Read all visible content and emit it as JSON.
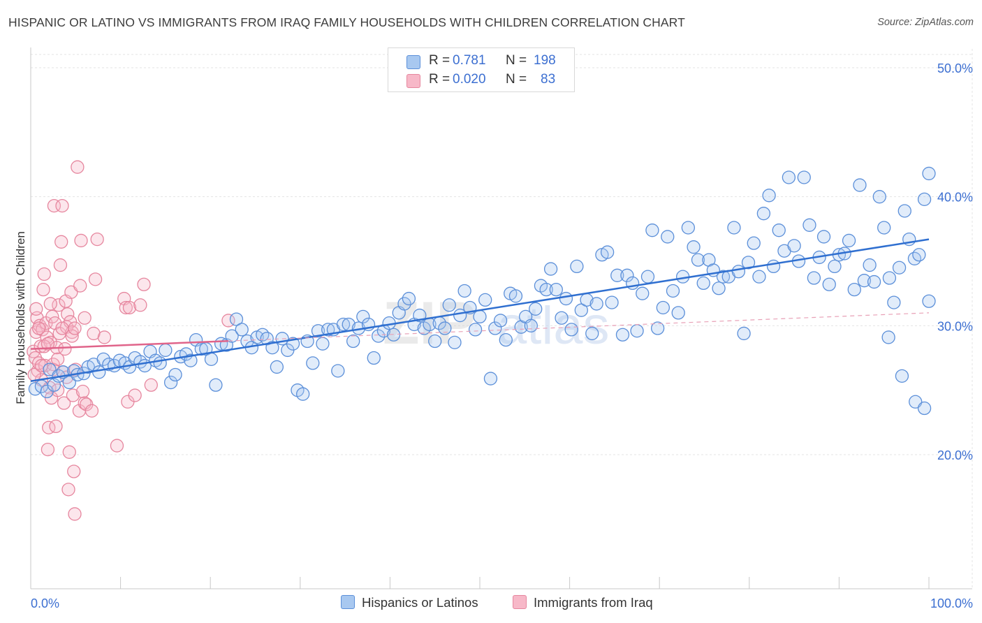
{
  "title": "HISPANIC OR LATINO VS IMMIGRANTS FROM IRAQ FAMILY HOUSEHOLDS WITH CHILDREN CORRELATION CHART",
  "source": "Source: ZipAtlas.com",
  "watermark": {
    "zip": "ZIP",
    "atlas": "atlas"
  },
  "legend_top": {
    "rows": [
      {
        "r_label": "R =",
        "r_value": "0.781",
        "n_label": "N =",
        "n_value": "198",
        "color": "#a8c8f0",
        "border": "#5b8fd9"
      },
      {
        "r_label": "R =",
        "r_value": "0.020",
        "n_label": "N =",
        "n_value": "83",
        "color": "#f7b8c8",
        "border": "#e6869e"
      }
    ]
  },
  "legend_bottom": [
    {
      "label": "Hispanics or Latinos",
      "color": "#a8c8f0",
      "border": "#5b8fd9"
    },
    {
      "label": "Immigrants from Iraq",
      "color": "#f7b8c8",
      "border": "#e6869e"
    }
  ],
  "chart_data": {
    "type": "scatter",
    "title": "HISPANIC OR LATINO VS IMMIGRANTS FROM IRAQ FAMILY HOUSEHOLDS WITH CHILDREN CORRELATION CHART",
    "xlabel": "",
    "ylabel": "Family Households with Children",
    "xlim": [
      0,
      100
    ],
    "ylim": [
      10,
      52
    ],
    "y_ticks": [
      20,
      30,
      40,
      50
    ],
    "y_tick_labels": [
      "20.0%",
      "30.0%",
      "40.0%",
      "50.0%"
    ],
    "x_tick_labels": [
      "0.0%",
      "100.0%"
    ],
    "grid": true,
    "series": [
      {
        "name": "Hispanics or Latinos",
        "color": "#5b8fd9",
        "fill": "#a8c8f0",
        "trend": {
          "x": [
            0,
            100
          ],
          "y": [
            25.7,
            36.7
          ],
          "style": "solid"
        },
        "points": [
          [
            0.5,
            25.1
          ],
          [
            1.2,
            25.3
          ],
          [
            1.8,
            24.9
          ],
          [
            2.1,
            26.6
          ],
          [
            2.6,
            25.4
          ],
          [
            3.1,
            26.1
          ],
          [
            3.6,
            26.4
          ],
          [
            4.3,
            25.6
          ],
          [
            4.8,
            26.5
          ],
          [
            5.2,
            26.2
          ],
          [
            5.9,
            26.3
          ],
          [
            6.4,
            26.8
          ],
          [
            7.0,
            27.0
          ],
          [
            7.6,
            26.4
          ],
          [
            8.1,
            27.4
          ],
          [
            8.7,
            27.0
          ],
          [
            9.3,
            26.9
          ],
          [
            9.9,
            27.3
          ],
          [
            10.5,
            27.1
          ],
          [
            11.0,
            26.8
          ],
          [
            11.6,
            27.5
          ],
          [
            12.2,
            27.2
          ],
          [
            12.7,
            26.9
          ],
          [
            13.3,
            28.0
          ],
          [
            13.9,
            27.3
          ],
          [
            14.4,
            27.1
          ],
          [
            15.0,
            28.1
          ],
          [
            15.6,
            25.6
          ],
          [
            16.1,
            26.2
          ],
          [
            16.7,
            27.6
          ],
          [
            17.3,
            27.8
          ],
          [
            17.8,
            27.3
          ],
          [
            18.4,
            28.9
          ],
          [
            19.0,
            28.2
          ],
          [
            19.5,
            28.2
          ],
          [
            20.1,
            27.4
          ],
          [
            20.6,
            25.4
          ],
          [
            21.2,
            28.6
          ],
          [
            21.8,
            28.5
          ],
          [
            22.4,
            29.2
          ],
          [
            22.9,
            30.5
          ],
          [
            23.5,
            29.7
          ],
          [
            24.1,
            28.8
          ],
          [
            24.6,
            28.3
          ],
          [
            25.2,
            29.1
          ],
          [
            25.8,
            29.3
          ],
          [
            26.3,
            29.0
          ],
          [
            26.9,
            28.3
          ],
          [
            27.4,
            26.8
          ],
          [
            28.0,
            29.0
          ],
          [
            28.6,
            28.1
          ],
          [
            29.2,
            28.6
          ],
          [
            29.7,
            25.0
          ],
          [
            30.3,
            24.7
          ],
          [
            30.8,
            28.8
          ],
          [
            31.4,
            27.1
          ],
          [
            32.0,
            29.6
          ],
          [
            32.5,
            28.6
          ],
          [
            33.1,
            29.7
          ],
          [
            33.7,
            29.7
          ],
          [
            34.2,
            26.5
          ],
          [
            34.8,
            30.1
          ],
          [
            35.4,
            30.1
          ],
          [
            35.9,
            28.8
          ],
          [
            36.5,
            29.8
          ],
          [
            37.0,
            30.7
          ],
          [
            37.6,
            30.1
          ],
          [
            38.2,
            27.5
          ],
          [
            38.7,
            29.2
          ],
          [
            39.3,
            29.6
          ],
          [
            39.9,
            30.2
          ],
          [
            40.4,
            29.3
          ],
          [
            41.0,
            31.0
          ],
          [
            41.6,
            31.7
          ],
          [
            42.1,
            32.1
          ],
          [
            42.7,
            30.1
          ],
          [
            43.3,
            30.8
          ],
          [
            43.8,
            29.8
          ],
          [
            44.4,
            30.1
          ],
          [
            45.0,
            28.8
          ],
          [
            45.5,
            30.2
          ],
          [
            46.1,
            29.8
          ],
          [
            46.6,
            31.6
          ],
          [
            47.2,
            28.7
          ],
          [
            47.8,
            30.8
          ],
          [
            48.3,
            32.7
          ],
          [
            48.9,
            31.4
          ],
          [
            49.5,
            29.7
          ],
          [
            50.0,
            30.7
          ],
          [
            50.6,
            32.0
          ],
          [
            51.2,
            25.9
          ],
          [
            51.7,
            29.8
          ],
          [
            52.3,
            30.4
          ],
          [
            52.9,
            28.9
          ],
          [
            53.4,
            32.5
          ],
          [
            54.0,
            32.3
          ],
          [
            54.6,
            29.9
          ],
          [
            55.1,
            30.7
          ],
          [
            55.7,
            30.0
          ],
          [
            56.2,
            31.3
          ],
          [
            56.8,
            33.1
          ],
          [
            57.4,
            32.8
          ],
          [
            57.9,
            34.4
          ],
          [
            58.5,
            32.8
          ],
          [
            59.1,
            30.6
          ],
          [
            59.6,
            32.1
          ],
          [
            60.2,
            29.7
          ],
          [
            60.8,
            34.6
          ],
          [
            61.3,
            31.2
          ],
          [
            61.9,
            32.0
          ],
          [
            62.5,
            29.4
          ],
          [
            63.0,
            31.7
          ],
          [
            63.6,
            35.5
          ],
          [
            64.2,
            35.7
          ],
          [
            64.7,
            31.8
          ],
          [
            65.3,
            33.9
          ],
          [
            65.9,
            29.3
          ],
          [
            66.4,
            33.9
          ],
          [
            67.0,
            33.3
          ],
          [
            67.5,
            29.6
          ],
          [
            68.1,
            32.5
          ],
          [
            68.7,
            33.8
          ],
          [
            69.2,
            37.4
          ],
          [
            69.8,
            29.8
          ],
          [
            70.4,
            31.4
          ],
          [
            70.9,
            36.9
          ],
          [
            71.5,
            32.7
          ],
          [
            72.1,
            31.0
          ],
          [
            72.6,
            33.8
          ],
          [
            73.2,
            37.6
          ],
          [
            73.8,
            36.1
          ],
          [
            74.3,
            35.1
          ],
          [
            74.9,
            33.3
          ],
          [
            75.5,
            35.1
          ],
          [
            76.0,
            34.3
          ],
          [
            76.6,
            32.9
          ],
          [
            77.1,
            33.8
          ],
          [
            77.7,
            33.8
          ],
          [
            78.3,
            37.6
          ],
          [
            78.8,
            34.2
          ],
          [
            79.4,
            29.4
          ],
          [
            79.9,
            34.9
          ],
          [
            80.5,
            36.4
          ],
          [
            81.1,
            33.8
          ],
          [
            81.6,
            38.7
          ],
          [
            82.2,
            40.1
          ],
          [
            82.7,
            34.6
          ],
          [
            83.3,
            37.4
          ],
          [
            83.9,
            35.8
          ],
          [
            84.4,
            41.5
          ],
          [
            85.0,
            36.2
          ],
          [
            85.5,
            35.0
          ],
          [
            86.1,
            41.5
          ],
          [
            86.7,
            37.8
          ],
          [
            87.2,
            33.7
          ],
          [
            87.8,
            35.3
          ],
          [
            88.3,
            36.9
          ],
          [
            88.9,
            33.2
          ],
          [
            89.5,
            34.6
          ],
          [
            90.0,
            35.5
          ],
          [
            90.6,
            35.6
          ],
          [
            91.1,
            36.6
          ],
          [
            91.7,
            32.8
          ],
          [
            92.3,
            40.9
          ],
          [
            92.8,
            33.5
          ],
          [
            93.4,
            34.7
          ],
          [
            93.9,
            33.4
          ],
          [
            94.5,
            40.0
          ],
          [
            95.0,
            37.6
          ],
          [
            95.6,
            33.7
          ],
          [
            96.1,
            31.8
          ],
          [
            96.7,
            34.5
          ],
          [
            97.3,
            38.9
          ],
          [
            97.8,
            36.7
          ],
          [
            98.4,
            35.2
          ],
          [
            98.9,
            35.5
          ],
          [
            99.5,
            39.8
          ],
          [
            100.0,
            41.8
          ],
          [
            95.5,
            29.1
          ],
          [
            97.0,
            26.1
          ],
          [
            98.5,
            24.1
          ],
          [
            99.5,
            23.6
          ],
          [
            100.0,
            31.9
          ]
        ]
      },
      {
        "name": "Immigrants from Iraq",
        "color": "#e6869e",
        "fill": "#f7b8c8",
        "trend": {
          "x": [
            0,
            100
          ],
          "y": [
            28.2,
            31.0
          ],
          "style": "solid-to-dashed",
          "solid_until_x": 22
        },
        "points": [
          [
            0.3,
            28.0
          ],
          [
            0.5,
            27.5
          ],
          [
            0.6,
            29.5
          ],
          [
            0.7,
            30.6
          ],
          [
            0.8,
            26.5
          ],
          [
            0.9,
            27.1
          ],
          [
            1.0,
            30.0
          ],
          [
            1.1,
            28.4
          ],
          [
            1.2,
            25.8
          ],
          [
            1.3,
            29.7
          ],
          [
            1.4,
            32.8
          ],
          [
            1.5,
            34.0
          ],
          [
            1.6,
            26.9
          ],
          [
            1.7,
            30.2
          ],
          [
            1.8,
            29.1
          ],
          [
            1.9,
            20.4
          ],
          [
            2.0,
            22.1
          ],
          [
            2.1,
            25.2
          ],
          [
            2.2,
            28.7
          ],
          [
            2.3,
            24.4
          ],
          [
            2.4,
            30.7
          ],
          [
            2.5,
            27.0
          ],
          [
            2.6,
            39.3
          ],
          [
            2.7,
            30.2
          ],
          [
            2.8,
            22.2
          ],
          [
            2.9,
            28.3
          ],
          [
            3.0,
            25.0
          ],
          [
            3.1,
            31.6
          ],
          [
            3.2,
            29.4
          ],
          [
            3.3,
            34.7
          ],
          [
            3.4,
            36.5
          ],
          [
            3.5,
            39.3
          ],
          [
            3.6,
            26.4
          ],
          [
            3.7,
            24.0
          ],
          [
            3.8,
            28.2
          ],
          [
            3.9,
            31.9
          ],
          [
            4.0,
            29.9
          ],
          [
            4.1,
            30.9
          ],
          [
            4.2,
            17.3
          ],
          [
            4.3,
            20.2
          ],
          [
            4.4,
            30.3
          ],
          [
            4.5,
            32.6
          ],
          [
            4.6,
            29.5
          ],
          [
            4.7,
            24.6
          ],
          [
            4.8,
            18.7
          ],
          [
            4.9,
            15.4
          ],
          [
            5.0,
            26.6
          ],
          [
            5.2,
            42.3
          ],
          [
            5.4,
            23.4
          ],
          [
            5.6,
            36.6
          ],
          [
            5.8,
            24.9
          ],
          [
            6.0,
            24.0
          ],
          [
            6.2,
            23.9
          ],
          [
            6.8,
            23.4
          ],
          [
            7.2,
            33.6
          ],
          [
            7.4,
            36.7
          ],
          [
            9.6,
            20.7
          ],
          [
            10.4,
            32.1
          ],
          [
            10.6,
            31.4
          ],
          [
            10.8,
            24.1
          ],
          [
            11.0,
            31.4
          ],
          [
            11.6,
            24.6
          ],
          [
            12.2,
            31.6
          ],
          [
            12.6,
            33.2
          ],
          [
            13.4,
            25.4
          ],
          [
            0.4,
            26.2
          ],
          [
            0.6,
            31.3
          ],
          [
            0.9,
            29.8
          ],
          [
            1.2,
            26.9
          ],
          [
            1.5,
            28.4
          ],
          [
            1.9,
            28.6
          ],
          [
            2.2,
            31.7
          ],
          [
            2.5,
            26.6
          ],
          [
            3.0,
            27.4
          ],
          [
            3.5,
            29.8
          ],
          [
            4.0,
            26.0
          ],
          [
            4.6,
            29.2
          ],
          [
            4.9,
            29.8
          ],
          [
            5.5,
            33.1
          ],
          [
            6.0,
            30.6
          ],
          [
            7.0,
            29.4
          ],
          [
            8.2,
            29.1
          ],
          [
            22.0,
            30.4
          ]
        ]
      }
    ]
  }
}
